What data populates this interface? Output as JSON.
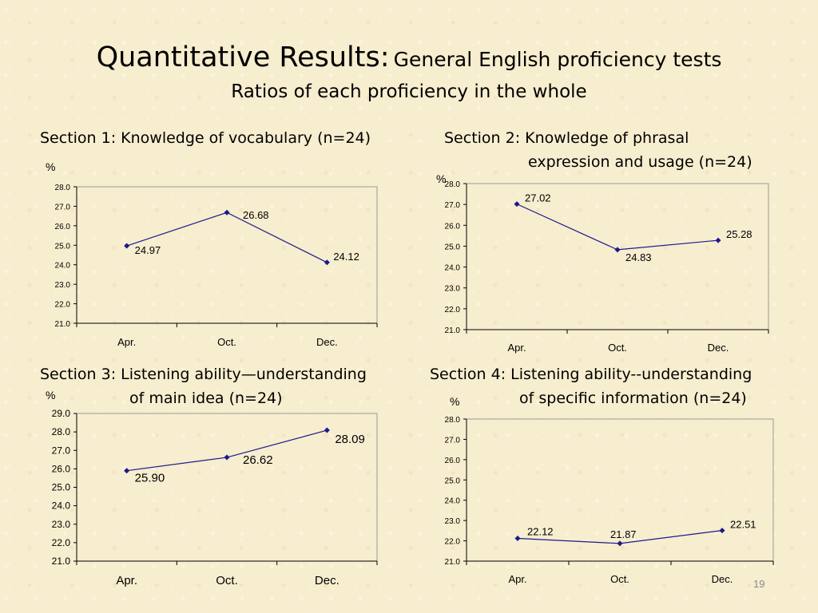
{
  "title": "Quantitative Results:",
  "title_sub": "General English proficiency tests",
  "subtitle": "Ratios of each proficiency in the whole",
  "page_number": "19",
  "chart_data": [
    {
      "type": "line",
      "title_line1": "Section 1: Knowledge of vocabulary (n=24)",
      "title_line2": "",
      "ylabel": "%",
      "categories": [
        "Apr.",
        "Oct.",
        "Dec."
      ],
      "values": [
        24.97,
        26.68,
        24.12
      ],
      "value_labels": [
        "24.97",
        "26.68",
        "24.12"
      ],
      "ylim": [
        21.0,
        28.0
      ],
      "yticks": [
        "21.0",
        "22.0",
        "23.0",
        "24.0",
        "25.0",
        "26.0",
        "27.0",
        "28.0"
      ],
      "line_color": "#1a1a8c",
      "grid": false
    },
    {
      "type": "line",
      "title_line1": "Section 2: Knowledge of phrasal",
      "title_line2": "expression and usage (n=24)",
      "ylabel": "%",
      "categories": [
        "Apr.",
        "Oct.",
        "Dec."
      ],
      "values": [
        27.02,
        24.83,
        25.28
      ],
      "value_labels": [
        "27.02",
        "24.83",
        "25.28"
      ],
      "ylim": [
        21.0,
        28.0
      ],
      "yticks": [
        "21.0",
        "22.0",
        "23.0",
        "24.0",
        "25.0",
        "26.0",
        "27.0",
        "28.0"
      ],
      "line_color": "#1a1a8c",
      "grid": false
    },
    {
      "type": "line",
      "title_line1": "Section 3: Listening ability—understanding",
      "title_line2": "of main idea (n=24)",
      "ylabel": "%",
      "categories": [
        "Apr.",
        "Oct.",
        "Dec."
      ],
      "values": [
        25.9,
        26.62,
        28.09
      ],
      "value_labels": [
        "25.90",
        "26.62",
        "28.09"
      ],
      "ylim": [
        21.0,
        29.0
      ],
      "yticks": [
        "21.0",
        "22.0",
        "23.0",
        "24.0",
        "25.0",
        "26.0",
        "27.0",
        "28.0",
        "29.0"
      ],
      "line_color": "#1a1a8c",
      "grid": false
    },
    {
      "type": "line",
      "title_line1": "Section 4: Listening ability--understanding",
      "title_line2": "of specific information (n=24)",
      "ylabel": "%",
      "categories": [
        "Apr.",
        "Oct.",
        "Dec."
      ],
      "values": [
        22.12,
        21.87,
        22.51
      ],
      "value_labels": [
        "22.12",
        "21.87",
        "22.51"
      ],
      "ylim": [
        21.0,
        28.0
      ],
      "yticks": [
        "21.0",
        "22.0",
        "23.0",
        "24.0",
        "25.0",
        "26.0",
        "27.0",
        "28.0"
      ],
      "line_color": "#1a1a8c",
      "grid": false
    }
  ]
}
